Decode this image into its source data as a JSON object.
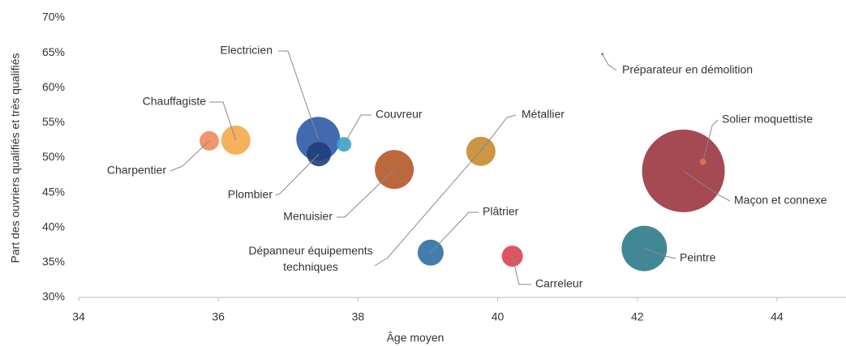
{
  "chart_data": {
    "type": "bubble",
    "x_label": "Âge moyen",
    "y_label": "Part des ouvriers qualifiés et très qualifiés",
    "xlim": [
      34,
      45
    ],
    "xticks": [
      34,
      36,
      38,
      40,
      42,
      44
    ],
    "ylim": [
      30,
      70
    ],
    "yticks": [
      {
        "value": 30,
        "label": "30%"
      },
      {
        "value": 35,
        "label": "35%"
      },
      {
        "value": 40,
        "label": "40%"
      },
      {
        "value": 45,
        "label": "45%"
      },
      {
        "value": 50,
        "label": "50%"
      },
      {
        "value": 55,
        "label": "55%"
      },
      {
        "value": 60,
        "label": "60%"
      },
      {
        "value": 65,
        "label": "65%"
      },
      {
        "value": 70,
        "label": "70%"
      }
    ],
    "grid": false,
    "points": [
      {
        "name": "Charpentier",
        "color": "#f08a5d",
        "x": 35.87,
        "y": 52.4,
        "size": 144
      },
      {
        "name": "Chauffagiste",
        "color": "#f5a94a",
        "x": 36.25,
        "y": 52.5,
        "size": 324
      },
      {
        "name": "Electricien",
        "color": "#2f5aa8",
        "x": 37.43,
        "y": 52.7,
        "size": 729
      },
      {
        "name": "Plombier",
        "color": "#1f3f7a",
        "x": 37.44,
        "y": 50.5,
        "size": 225
      },
      {
        "name": "Couvreur",
        "color": "#3aa3c8",
        "x": 37.8,
        "y": 51.9,
        "size": 81
      },
      {
        "name": "Menuisier",
        "color": "#b5582a",
        "x": 38.52,
        "y": 48.3,
        "size": 576
      },
      {
        "name": "Métallier",
        "color": "#c98a2e",
        "x": 39.76,
        "y": 50.9,
        "size": 324
      },
      {
        "name": "Dépanneur équipements techniques",
        "color": "#999999",
        "x": 39.8,
        "y": 51.5,
        "size": 4
      },
      {
        "name": "Plâtrier",
        "color": "#2f6fa5",
        "x": 39.04,
        "y": 36.4,
        "size": 256
      },
      {
        "name": "Carreleur",
        "color": "#d9434f",
        "x": 40.21,
        "y": 35.9,
        "size": 169
      },
      {
        "name": "Peintre",
        "color": "#2e7a8a",
        "x": 42.1,
        "y": 37.0,
        "size": 784
      },
      {
        "name": "Maçon et connexe",
        "color": "#9b3540",
        "x": 42.66,
        "y": 48.1,
        "size": 2601
      },
      {
        "name": "Solier moquettiste",
        "color": "#f07050",
        "x": 42.94,
        "y": 49.4,
        "size": 16
      },
      {
        "name": "Préparateur en démolition",
        "color": "#666666",
        "x": 41.5,
        "y": 64.8,
        "size": 2
      }
    ]
  }
}
